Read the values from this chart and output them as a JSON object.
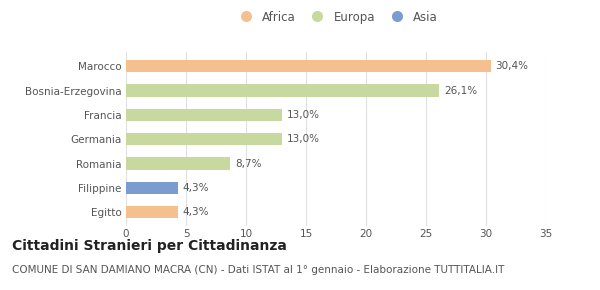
{
  "categories": [
    "Marocco",
    "Bosnia-Erzegovina",
    "Francia",
    "Germania",
    "Romania",
    "Filippine",
    "Egitto"
  ],
  "values": [
    30.4,
    26.1,
    13.0,
    13.0,
    8.7,
    4.3,
    4.3
  ],
  "labels": [
    "30,4%",
    "26,1%",
    "13,0%",
    "13,0%",
    "8,7%",
    "4,3%",
    "4,3%"
  ],
  "colors": [
    "#f5bf8e",
    "#c8d9a0",
    "#c8d9a0",
    "#c8d9a0",
    "#c8d9a0",
    "#7b9ccf",
    "#f5bf8e"
  ],
  "legend_labels": [
    "Africa",
    "Europa",
    "Asia"
  ],
  "legend_colors": [
    "#f5bf8e",
    "#c8d9a0",
    "#7b9ccf"
  ],
  "xlim": [
    0,
    35
  ],
  "xticks": [
    0,
    5,
    10,
    15,
    20,
    25,
    30,
    35
  ],
  "title": "Cittadini Stranieri per Cittadinanza",
  "subtitle": "COMUNE DI SAN DAMIANO MACRA (CN) - Dati ISTAT al 1° gennaio - Elaborazione TUTTITALIA.IT",
  "title_fontsize": 10,
  "subtitle_fontsize": 7.5,
  "label_fontsize": 7.5,
  "tick_fontsize": 7.5,
  "legend_fontsize": 8.5,
  "bar_height": 0.5,
  "background_color": "#ffffff",
  "grid_color": "#e0e0e0",
  "text_color": "#555555"
}
